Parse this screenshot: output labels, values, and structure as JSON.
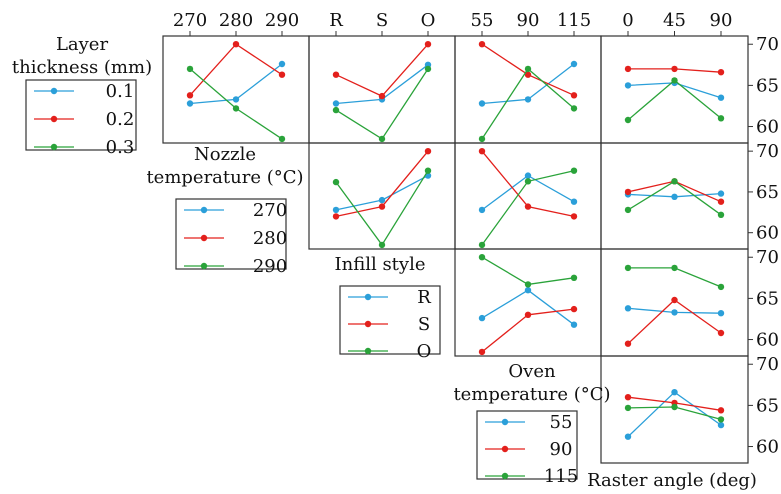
{
  "colors": {
    "series1": "#2b9fd9",
    "series2": "#e3201c",
    "series3": "#2aa33a"
  },
  "top_ticks": [
    [
      "270",
      "280",
      "290"
    ],
    [
      "R",
      "S",
      "O"
    ],
    [
      "55",
      "90",
      "115"
    ],
    [
      "0",
      "45",
      "90"
    ]
  ],
  "y_ticks": [
    "70",
    "65",
    "60"
  ],
  "factor_titles": [
    [
      "Layer",
      "thickness (mm)"
    ],
    [
      "Nozzle",
      "temperature (°C)"
    ],
    [
      "Infill style"
    ],
    [
      "Oven",
      "temperature (°C)"
    ],
    [
      "Raster angle (deg)"
    ]
  ],
  "legends": [
    [
      "0.1",
      "0.2",
      "0.3"
    ],
    [
      "270",
      "280",
      "290"
    ],
    [
      "R",
      "S",
      "O"
    ],
    [
      "55",
      "90",
      "115"
    ]
  ],
  "chart_data": {
    "type": "line",
    "kind": "interaction-plot-matrix",
    "ylim": [
      58,
      71
    ],
    "factors": [
      {
        "name": "Layer thickness (mm)",
        "levels": [
          "0.1",
          "0.2",
          "0.3"
        ]
      },
      {
        "name": "Nozzle temperature (°C)",
        "levels": [
          "270",
          "280",
          "290"
        ]
      },
      {
        "name": "Infill style",
        "levels": [
          "R",
          "S",
          "O"
        ]
      },
      {
        "name": "Oven temperature (°C)",
        "levels": [
          "55",
          "90",
          "115"
        ]
      },
      {
        "name": "Raster angle (deg)",
        "levels": [
          "0",
          "45",
          "90"
        ]
      }
    ],
    "panels": [
      {
        "row": 0,
        "col": 0,
        "x": [
          "270",
          "280",
          "290"
        ],
        "series": [
          {
            "name": "0.1",
            "values": [
              62.8,
              63.3,
              67.6
            ]
          },
          {
            "name": "0.2",
            "values": [
              63.8,
              70.0,
              66.3
            ]
          },
          {
            "name": "0.3",
            "values": [
              67.0,
              62.2,
              58.5
            ]
          }
        ]
      },
      {
        "row": 0,
        "col": 1,
        "x": [
          "R",
          "S",
          "O"
        ],
        "series": [
          {
            "name": "0.1",
            "values": [
              62.8,
              63.3,
              67.5
            ]
          },
          {
            "name": "0.2",
            "values": [
              66.3,
              63.7,
              70.0
            ]
          },
          {
            "name": "0.3",
            "values": [
              62.0,
              58.5,
              67.0
            ]
          }
        ]
      },
      {
        "row": 0,
        "col": 2,
        "x": [
          "55",
          "90",
          "115"
        ],
        "series": [
          {
            "name": "0.1",
            "values": [
              62.8,
              63.3,
              67.6
            ]
          },
          {
            "name": "0.2",
            "values": [
              70.0,
              66.3,
              63.8
            ]
          },
          {
            "name": "0.3",
            "values": [
              58.5,
              67.0,
              62.2
            ]
          }
        ]
      },
      {
        "row": 0,
        "col": 3,
        "x": [
          "0",
          "45",
          "90"
        ],
        "series": [
          {
            "name": "0.1",
            "values": [
              65.0,
              65.3,
              63.5
            ]
          },
          {
            "name": "0.2",
            "values": [
              67.0,
              67.0,
              66.6
            ]
          },
          {
            "name": "0.3",
            "values": [
              60.8,
              65.6,
              61.0
            ]
          }
        ]
      },
      {
        "row": 1,
        "col": 1,
        "x": [
          "R",
          "S",
          "O"
        ],
        "series": [
          {
            "name": "270",
            "values": [
              62.8,
              64.0,
              67.0
            ]
          },
          {
            "name": "280",
            "values": [
              62.0,
              63.2,
              70.0
            ]
          },
          {
            "name": "290",
            "values": [
              66.2,
              58.5,
              67.6
            ]
          }
        ]
      },
      {
        "row": 1,
        "col": 2,
        "x": [
          "55",
          "90",
          "115"
        ],
        "series": [
          {
            "name": "270",
            "values": [
              62.8,
              67.0,
              63.8
            ]
          },
          {
            "name": "280",
            "values": [
              70.0,
              63.2,
              62.0
            ]
          },
          {
            "name": "290",
            "values": [
              58.5,
              66.3,
              67.6
            ]
          }
        ]
      },
      {
        "row": 1,
        "col": 3,
        "x": [
          "0",
          "45",
          "90"
        ],
        "series": [
          {
            "name": "270",
            "values": [
              64.7,
              64.4,
              64.8
            ]
          },
          {
            "name": "280",
            "values": [
              65.0,
              66.3,
              63.8
            ]
          },
          {
            "name": "290",
            "values": [
              62.8,
              66.3,
              62.2
            ]
          }
        ]
      },
      {
        "row": 2,
        "col": 2,
        "x": [
          "55",
          "90",
          "115"
        ],
        "series": [
          {
            "name": "R",
            "values": [
              62.6,
              66.0,
              61.8
            ]
          },
          {
            "name": "S",
            "values": [
              58.5,
              63.0,
              63.7
            ]
          },
          {
            "name": "O",
            "values": [
              70.0,
              66.7,
              67.5
            ]
          }
        ]
      },
      {
        "row": 2,
        "col": 3,
        "x": [
          "0",
          "45",
          "90"
        ],
        "series": [
          {
            "name": "R",
            "values": [
              63.8,
              63.3,
              63.2
            ]
          },
          {
            "name": "S",
            "values": [
              59.5,
              64.8,
              60.8
            ]
          },
          {
            "name": "O",
            "values": [
              68.7,
              68.7,
              66.4
            ]
          }
        ]
      },
      {
        "row": 3,
        "col": 3,
        "x": [
          "0",
          "45",
          "90"
        ],
        "series": [
          {
            "name": "55",
            "values": [
              61.2,
              66.6,
              62.6
            ]
          },
          {
            "name": "90",
            "values": [
              66.0,
              65.3,
              64.4
            ]
          },
          {
            "name": "115",
            "values": [
              64.7,
              64.8,
              63.3
            ]
          }
        ]
      }
    ]
  }
}
